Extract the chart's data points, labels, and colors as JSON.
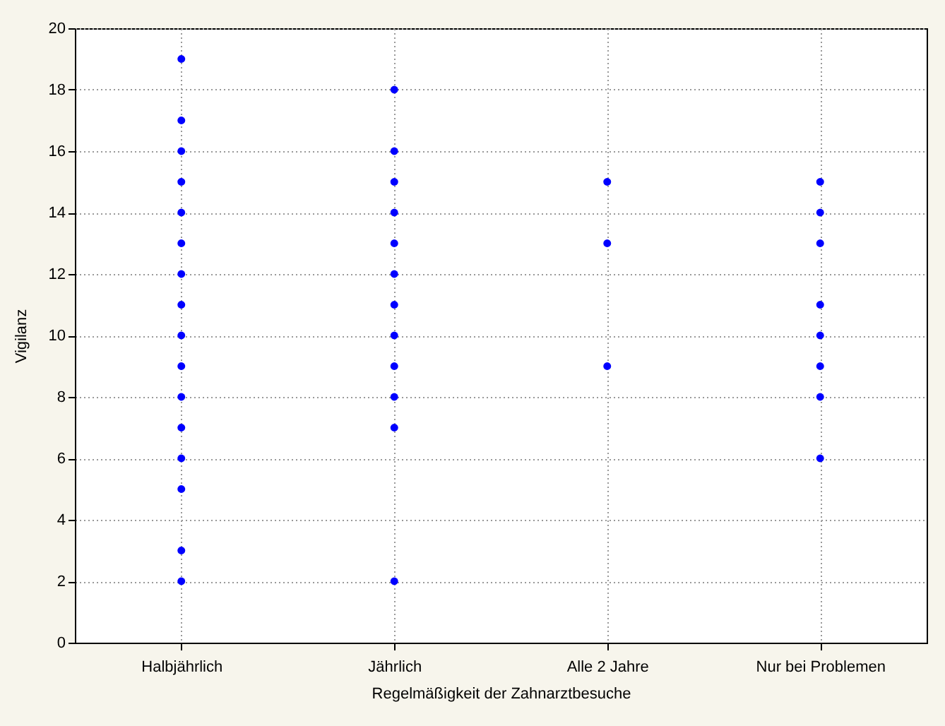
{
  "chart_data": {
    "type": "scatter",
    "xlabel": "Regelmäßigkeit der Zahnarztbesuche",
    "ylabel": "Vigilanz",
    "categories": [
      "Halbjährlich",
      "Jährlich",
      "Alle 2 Jahre",
      "Nur bei Problemen"
    ],
    "ylim": [
      0,
      20
    ],
    "yticks": [
      0,
      2,
      4,
      6,
      8,
      10,
      12,
      14,
      16,
      18,
      20
    ],
    "grid": true,
    "marker": "circle",
    "series": [
      {
        "color": "#0000ff",
        "x": [
          "Halbjährlich",
          "Halbjährlich",
          "Halbjährlich",
          "Halbjährlich",
          "Halbjährlich",
          "Halbjährlich",
          "Halbjährlich",
          "Halbjährlich",
          "Halbjährlich",
          "Halbjährlich",
          "Halbjährlich",
          "Halbjährlich",
          "Halbjährlich",
          "Halbjährlich",
          "Halbjährlich",
          "Halbjährlich",
          "Jährlich",
          "Jährlich",
          "Jährlich",
          "Jährlich",
          "Jährlich",
          "Jährlich",
          "Jährlich",
          "Jährlich",
          "Jährlich",
          "Jährlich",
          "Jährlich",
          "Jährlich",
          "Alle 2 Jahre",
          "Alle 2 Jahre",
          "Alle 2 Jahre",
          "Nur bei Problemen",
          "Nur bei Problemen",
          "Nur bei Problemen",
          "Nur bei Problemen",
          "Nur bei Problemen",
          "Nur bei Problemen",
          "Nur bei Problemen",
          "Nur bei Problemen"
        ],
        "values": [
          19,
          17,
          16,
          15,
          14,
          13,
          12,
          11,
          10,
          9,
          8,
          7,
          6,
          5,
          3,
          2,
          18,
          16,
          15,
          14,
          13,
          12,
          11,
          10,
          9,
          8,
          7,
          2,
          15,
          13,
          9,
          15,
          14,
          13,
          11,
          10,
          9,
          8,
          6
        ]
      }
    ]
  }
}
